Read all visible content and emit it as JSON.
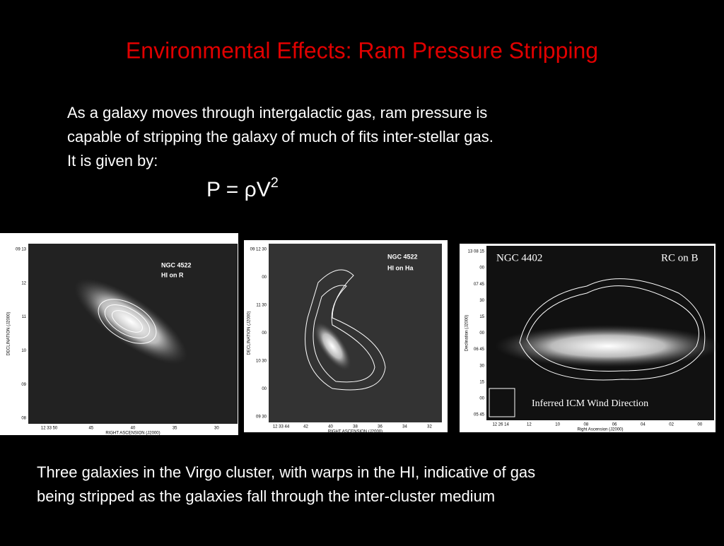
{
  "title": "Environmental Effects: Ram Pressure Stripping",
  "intro": [
    "As a galaxy moves through intergalactic gas, ram pressure is",
    "capable of stripping the galaxy of much of fits inter-stellar gas.",
    "It is given by:"
  ],
  "formula": {
    "base": "P = ρV",
    "exponent": "2"
  },
  "panels": [
    {
      "labels": [
        "NGC 4522",
        "HI on R"
      ],
      "xlabel": "RIGHT ASCENSION (J2000)",
      "ylabel": "DECLINATION (J2000)",
      "xticks": [
        "12 33 50",
        "45",
        "40",
        "35",
        "30"
      ],
      "yticks": [
        "09 13",
        "12",
        "11",
        "10",
        "09",
        "08"
      ]
    },
    {
      "labels": [
        "NGC 4522",
        "HI on Ha"
      ],
      "xlabel": "RIGHT ASCENSION (J2000)",
      "ylabel": "DECLINATION (J2000)",
      "xticks": [
        "12 33 44",
        "42",
        "40",
        "38",
        "36",
        "34",
        "32"
      ],
      "yticks": [
        "09 12 30",
        "00",
        "11 30",
        "00",
        "10 30",
        "00",
        "09 30"
      ]
    },
    {
      "labels": [
        "NGC 4402",
        "RC on B"
      ],
      "annotation": "Inferred ICM Wind Direction",
      "xlabel": "Right Ascension (J2000)",
      "ylabel": "Declination (J2000)",
      "xticks": [
        "12 26 14",
        "12",
        "10",
        "08",
        "06",
        "04",
        "02",
        "00"
      ],
      "yticks": [
        "13 08 15",
        "00",
        "07 45",
        "30",
        "15",
        "00",
        "06 45",
        "30",
        "15",
        "00",
        "05 45"
      ]
    }
  ],
  "caption": [
    "Three galaxies in the Virgo cluster, with warps in the HI, indicative of gas",
    "being stripped as the galaxies fall through the inter-cluster medium"
  ]
}
